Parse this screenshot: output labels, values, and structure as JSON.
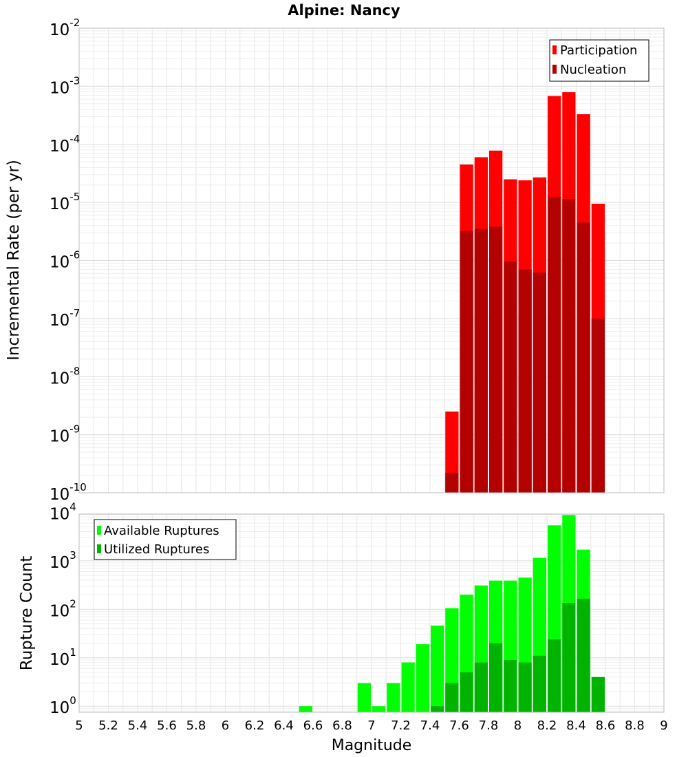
{
  "chart_data": [
    {
      "type": "bar",
      "title": "Alpine: Nancy",
      "ylabel": "Incremental Rate (per yr)",
      "yscale": "log",
      "ylim": [
        1e-10,
        0.01
      ],
      "ytick_labels": [
        {
          "base": "10",
          "exp": "-10"
        },
        {
          "base": "10",
          "exp": "-9"
        },
        {
          "base": "10",
          "exp": "-8"
        },
        {
          "base": "10",
          "exp": "-7"
        },
        {
          "base": "10",
          "exp": "-6"
        },
        {
          "base": "10",
          "exp": "-5"
        },
        {
          "base": "10",
          "exp": "-4"
        },
        {
          "base": "10",
          "exp": "-3"
        },
        {
          "base": "10",
          "exp": "-2"
        }
      ],
      "xlim": [
        5,
        9
      ],
      "grid": true,
      "legend_position": "top-right",
      "x": [
        7.55,
        7.65,
        7.75,
        7.85,
        7.95,
        8.05,
        8.15,
        8.25,
        8.35,
        8.45,
        8.55
      ],
      "series": [
        {
          "name": "Participation",
          "color": "#ff0000",
          "values": [
            2.5e-09,
            4.5e-05,
            6e-05,
            7.8e-05,
            2.5e-05,
            2.4e-05,
            2.7e-05,
            0.00068,
            0.00079,
            0.00033,
            9.5e-06
          ]
        },
        {
          "name": "Nucleation",
          "color": "#b30000",
          "values": [
            2.2e-10,
            3.2e-06,
            3.5e-06,
            3.8e-06,
            9.5e-07,
            7e-07,
            6.2e-07,
            1.25e-05,
            1.15e-05,
            4.5e-06,
            1e-07
          ]
        }
      ]
    },
    {
      "type": "bar",
      "ylabel": "Rupture Count",
      "xlabel": "Magnitude",
      "yscale": "log",
      "ylim": [
        0.75,
        9200
      ],
      "ytick_values": [
        1,
        10,
        100,
        1000,
        10000
      ],
      "ytick_labels": [
        {
          "base": "10",
          "exp": "0"
        },
        {
          "base": "10",
          "exp": "1"
        },
        {
          "base": "10",
          "exp": "2"
        },
        {
          "base": "10",
          "exp": "3"
        },
        {
          "base": "10",
          "exp": "4"
        }
      ],
      "xlim": [
        5,
        9
      ],
      "xtick_labels": [
        "5",
        "5.2",
        "5.4",
        "5.6",
        "5.8",
        "6",
        "6.2",
        "6.4",
        "6.6",
        "6.8",
        "7",
        "7.2",
        "7.4",
        "7.6",
        "7.8",
        "8",
        "8.2",
        "8.4",
        "8.6",
        "8.8",
        "9"
      ],
      "grid": true,
      "legend_position": "top-left",
      "x": [
        6.55,
        6.95,
        7.05,
        7.15,
        7.25,
        7.35,
        7.45,
        7.55,
        7.65,
        7.75,
        7.85,
        7.95,
        8.05,
        8.15,
        8.25,
        8.35,
        8.45,
        8.55
      ],
      "series": [
        {
          "name": "Available Ruptures",
          "color": "#00ff00",
          "values": [
            1,
            3,
            1,
            3,
            8,
            19,
            46,
            105,
            200,
            310,
            390,
            390,
            450,
            1150,
            5400,
            8800,
            1700,
            0
          ]
        },
        {
          "name": "Utilized Ruptures",
          "color": "#00b300",
          "values": [
            0,
            0,
            0,
            0,
            0,
            0,
            1,
            3,
            5,
            8,
            20,
            9,
            8,
            11,
            24,
            135,
            165,
            4
          ]
        }
      ]
    }
  ]
}
